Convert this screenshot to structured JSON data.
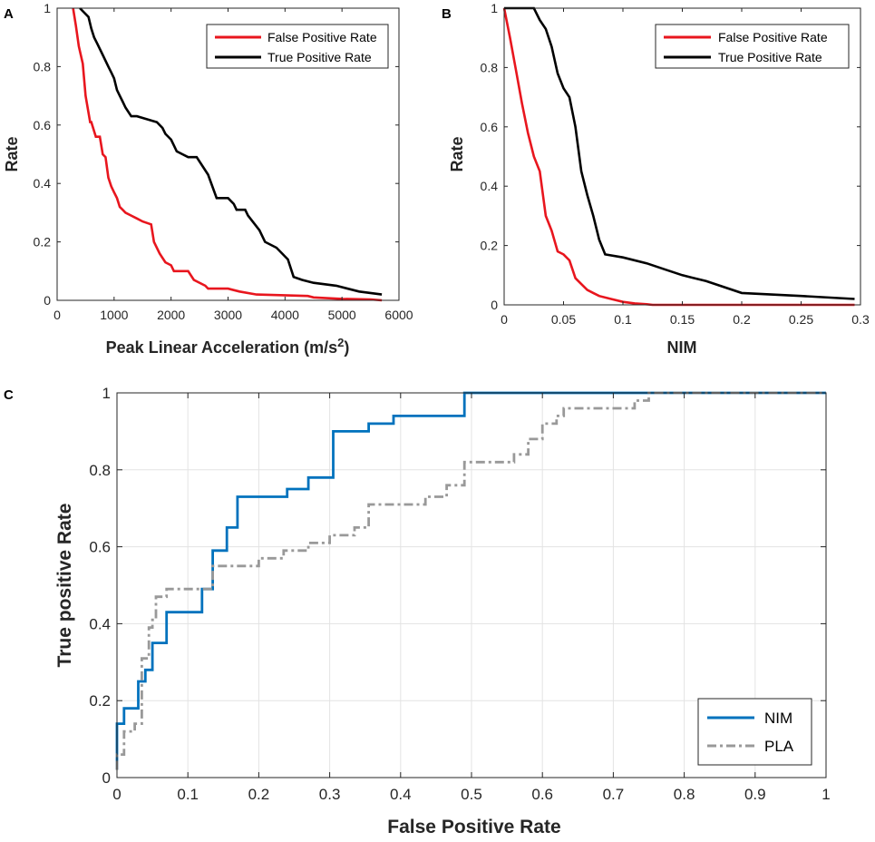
{
  "chart_data": [
    {
      "panel": "A",
      "type": "line",
      "title": "",
      "xlabel": "Peak Linear Acceleration (m/s",
      "xlabel_sup": "2",
      "xlabel_end": ")",
      "ylabel": "Rate",
      "xlim": [
        0,
        6000
      ],
      "ylim": [
        0,
        1
      ],
      "xticks": [
        0,
        1000,
        2000,
        3000,
        4000,
        5000,
        6000
      ],
      "yticks": [
        0,
        0.2,
        0.4,
        0.6,
        0.8,
        1
      ],
      "ytick_labels": [
        "0",
        "0.2",
        "0.4",
        "0.6",
        "0.8",
        "1"
      ],
      "grid": false,
      "legend_position": "top-right",
      "series": [
        {
          "name": "False Positive Rate",
          "color": "#e8161e",
          "x": [
            280,
            330,
            380,
            450,
            500,
            580,
            600,
            680,
            750,
            800,
            850,
            900,
            950,
            1000,
            1050,
            1100,
            1150,
            1200,
            1300,
            1400,
            1500,
            1650,
            1700,
            1800,
            1900,
            2000,
            2050,
            2300,
            2400,
            2600,
            2650,
            2700,
            3000,
            3200,
            3500,
            4400,
            4500,
            5000,
            5500,
            5700
          ],
          "y": [
            1,
            0.94,
            0.87,
            0.81,
            0.7,
            0.61,
            0.61,
            0.56,
            0.56,
            0.5,
            0.49,
            0.42,
            0.39,
            0.37,
            0.35,
            0.32,
            0.31,
            0.3,
            0.29,
            0.28,
            0.27,
            0.26,
            0.2,
            0.16,
            0.13,
            0.12,
            0.1,
            0.1,
            0.07,
            0.05,
            0.04,
            0.04,
            0.04,
            0.03,
            0.02,
            0.015,
            0.01,
            0.005,
            0.003,
            0
          ]
        },
        {
          "name": "True Positive Rate",
          "color": "#000000",
          "x": [
            400,
            550,
            600,
            650,
            700,
            800,
            900,
            950,
            1000,
            1050,
            1100,
            1150,
            1200,
            1300,
            1400,
            1750,
            1850,
            1900,
            2000,
            2050,
            2100,
            2200,
            2300,
            2350,
            2450,
            2650,
            2800,
            3000,
            3100,
            3150,
            3300,
            3350,
            3550,
            3650,
            3850,
            4050,
            4150,
            4300,
            4500,
            4900,
            5300,
            5700
          ],
          "y": [
            1,
            0.97,
            0.93,
            0.9,
            0.88,
            0.84,
            0.8,
            0.78,
            0.76,
            0.72,
            0.7,
            0.68,
            0.66,
            0.63,
            0.63,
            0.61,
            0.59,
            0.57,
            0.55,
            0.53,
            0.51,
            0.5,
            0.49,
            0.49,
            0.49,
            0.43,
            0.35,
            0.35,
            0.33,
            0.31,
            0.31,
            0.29,
            0.24,
            0.2,
            0.18,
            0.14,
            0.08,
            0.07,
            0.06,
            0.05,
            0.03,
            0.02
          ]
        }
      ]
    },
    {
      "panel": "B",
      "type": "line",
      "title": "",
      "xlabel": "NIM",
      "ylabel": "Rate",
      "xlim": [
        0,
        0.3
      ],
      "ylim": [
        0,
        1
      ],
      "xticks": [
        0,
        0.05,
        0.1,
        0.15,
        0.2,
        0.25,
        0.3
      ],
      "xtick_labels": [
        "0",
        "0.05",
        "0.1",
        "0.15",
        "0.2",
        "0.25",
        "0.3"
      ],
      "yticks": [
        0,
        0.2,
        0.4,
        0.6,
        0.8,
        1
      ],
      "ytick_labels": [
        "0",
        "0.2",
        "0.4",
        "0.6",
        "0.8",
        "1"
      ],
      "grid": false,
      "legend_position": "top-right",
      "series": [
        {
          "name": "False Positive Rate",
          "color": "#e8161e",
          "x": [
            0,
            0.005,
            0.01,
            0.015,
            0.02,
            0.025,
            0.03,
            0.035,
            0.04,
            0.045,
            0.05,
            0.055,
            0.06,
            0.065,
            0.07,
            0.075,
            0.08,
            0.09,
            0.1,
            0.11,
            0.12,
            0.125,
            0.2,
            0.295
          ],
          "y": [
            1,
            0.9,
            0.79,
            0.68,
            0.58,
            0.5,
            0.45,
            0.3,
            0.25,
            0.18,
            0.17,
            0.15,
            0.09,
            0.07,
            0.05,
            0.04,
            0.03,
            0.02,
            0.01,
            0.005,
            0.002,
            0,
            0,
            0
          ]
        },
        {
          "name": "True Positive Rate",
          "color": "#000000",
          "x": [
            0,
            0.025,
            0.03,
            0.035,
            0.04,
            0.045,
            0.05,
            0.055,
            0.06,
            0.065,
            0.07,
            0.075,
            0.08,
            0.085,
            0.1,
            0.12,
            0.135,
            0.15,
            0.17,
            0.2,
            0.25,
            0.295
          ],
          "y": [
            1,
            1,
            0.96,
            0.93,
            0.87,
            0.78,
            0.73,
            0.7,
            0.6,
            0.45,
            0.37,
            0.3,
            0.22,
            0.17,
            0.16,
            0.14,
            0.12,
            0.1,
            0.08,
            0.04,
            0.03,
            0.02
          ]
        }
      ]
    },
    {
      "panel": "C",
      "type": "line",
      "title": "",
      "xlabel": "False Positive Rate",
      "ylabel": "True positive Rate",
      "xlim": [
        0,
        1
      ],
      "ylim": [
        0,
        1
      ],
      "xticks": [
        0,
        0.1,
        0.2,
        0.3,
        0.4,
        0.5,
        0.6,
        0.7,
        0.8,
        0.9,
        1
      ],
      "xtick_labels": [
        "0",
        "0.1",
        "0.2",
        "0.3",
        "0.4",
        "0.5",
        "0.6",
        "0.7",
        "0.8",
        "0.9",
        "1"
      ],
      "yticks": [
        0,
        0.2,
        0.4,
        0.6,
        0.8,
        1
      ],
      "ytick_labels": [
        "0",
        "0.2",
        "0.4",
        "0.6",
        "0.8",
        "1"
      ],
      "grid": true,
      "legend_position": "bottom-right",
      "series": [
        {
          "name": "NIM",
          "color": "#0072bd",
          "style": "solid",
          "x": [
            0,
            0,
            0.01,
            0.01,
            0.03,
            0.03,
            0.04,
            0.04,
            0.05,
            0.05,
            0.07,
            0.07,
            0.12,
            0.12,
            0.135,
            0.135,
            0.155,
            0.155,
            0.17,
            0.17,
            0.24,
            0.24,
            0.27,
            0.27,
            0.305,
            0.305,
            0.355,
            0.355,
            0.39,
            0.39,
            0.49,
            0.49,
            0.75,
            1
          ],
          "y": [
            0.02,
            0.14,
            0.14,
            0.18,
            0.18,
            0.25,
            0.25,
            0.28,
            0.28,
            0.35,
            0.35,
            0.43,
            0.43,
            0.49,
            0.49,
            0.59,
            0.59,
            0.65,
            0.65,
            0.73,
            0.73,
            0.75,
            0.75,
            0.78,
            0.78,
            0.9,
            0.9,
            0.92,
            0.92,
            0.94,
            0.94,
            1,
            1,
            1
          ]
        },
        {
          "name": "PLA",
          "color": "#999999",
          "style": "dash-dot",
          "x": [
            0,
            0,
            0.01,
            0.01,
            0.025,
            0.025,
            0.035,
            0.035,
            0.045,
            0.045,
            0.05,
            0.05,
            0.055,
            0.055,
            0.07,
            0.07,
            0.135,
            0.135,
            0.2,
            0.2,
            0.235,
            0.235,
            0.27,
            0.27,
            0.3,
            0.3,
            0.335,
            0.335,
            0.355,
            0.355,
            0.435,
            0.435,
            0.465,
            0.465,
            0.49,
            0.49,
            0.56,
            0.56,
            0.58,
            0.58,
            0.6,
            0.6,
            0.62,
            0.62,
            0.63,
            0.63,
            0.73,
            0.73,
            0.75,
            0.75,
            1
          ],
          "y": [
            0.02,
            0.06,
            0.06,
            0.12,
            0.12,
            0.14,
            0.14,
            0.31,
            0.31,
            0.39,
            0.39,
            0.41,
            0.41,
            0.47,
            0.47,
            0.49,
            0.49,
            0.55,
            0.55,
            0.57,
            0.57,
            0.59,
            0.59,
            0.61,
            0.61,
            0.63,
            0.63,
            0.65,
            0.65,
            0.71,
            0.71,
            0.73,
            0.73,
            0.76,
            0.76,
            0.82,
            0.82,
            0.84,
            0.84,
            0.88,
            0.88,
            0.92,
            0.92,
            0.94,
            0.94,
            0.96,
            0.96,
            0.98,
            0.98,
            1,
            1
          ]
        }
      ]
    }
  ]
}
